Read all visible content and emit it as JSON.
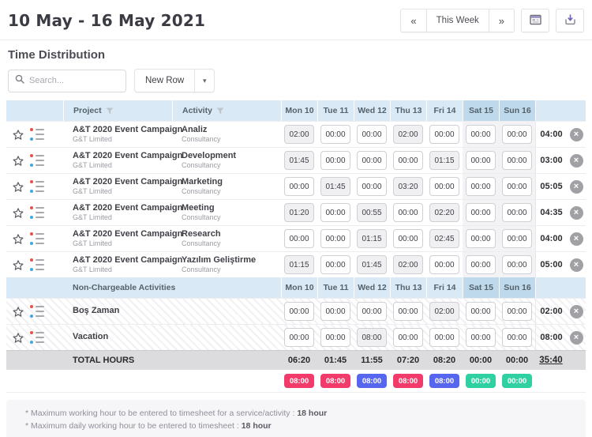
{
  "header": {
    "title": "10 May - 16 May 2021",
    "prev": "«",
    "this_week": "This Week",
    "next": "»"
  },
  "section_title": "Time Distribution",
  "toolbar": {
    "search_placeholder": "Search...",
    "new_row": "New Row",
    "dropdown_chevron": "▾"
  },
  "table": {
    "columns": {
      "project": "Project",
      "activity": "Activity"
    },
    "days": [
      "Mon 10",
      "Tue 11",
      "Wed 12",
      "Thu 13",
      "Fri 14",
      "Sat 15",
      "Sun 16"
    ],
    "rows": [
      {
        "project": "A&T 2020 Event Campaign",
        "company": "G&T Limited",
        "activity": "Analiz",
        "activity_sub": "Consultancy",
        "times": [
          "02:00",
          "00:00",
          "00:00",
          "02:00",
          "00:00",
          "00:00",
          "00:00"
        ],
        "total": "04:00"
      },
      {
        "project": "A&T 2020 Event Campaign",
        "company": "G&T Limited",
        "activity": "Development",
        "activity_sub": "Consultancy",
        "times": [
          "01:45",
          "00:00",
          "00:00",
          "00:00",
          "01:15",
          "00:00",
          "00:00"
        ],
        "total": "03:00"
      },
      {
        "project": "A&T 2020 Event Campaign",
        "company": "G&T Limited",
        "activity": "Marketing",
        "activity_sub": "Consultancy",
        "times": [
          "00:00",
          "01:45",
          "00:00",
          "03:20",
          "00:00",
          "00:00",
          "00:00"
        ],
        "total": "05:05"
      },
      {
        "project": "A&T 2020 Event Campaign",
        "company": "G&T Limited",
        "activity": "Meeting",
        "activity_sub": "Consultancy",
        "times": [
          "01:20",
          "00:00",
          "00:55",
          "00:00",
          "02:20",
          "00:00",
          "00:00"
        ],
        "total": "04:35"
      },
      {
        "project": "A&T 2020 Event Campaign",
        "company": "G&T Limited",
        "activity": "Research",
        "activity_sub": "Consultancy",
        "times": [
          "00:00",
          "00:00",
          "01:15",
          "00:00",
          "02:45",
          "00:00",
          "00:00"
        ],
        "total": "04:00"
      },
      {
        "project": "A&T 2020 Event Campaign",
        "company": "G&T Limited",
        "activity": "Yazılım Geliştirme",
        "activity_sub": "Consultancy",
        "times": [
          "01:15",
          "00:00",
          "01:45",
          "02:00",
          "00:00",
          "00:00",
          "00:00"
        ],
        "total": "05:00"
      }
    ],
    "non_chargeable": {
      "label": "Non-Chargeable Activities",
      "rows": [
        {
          "name": "Boş Zaman",
          "times": [
            "00:00",
            "00:00",
            "00:00",
            "00:00",
            "02:00",
            "00:00",
            "00:00"
          ],
          "total": "02:00"
        },
        {
          "name": "Vacation",
          "times": [
            "00:00",
            "00:00",
            "08:00",
            "00:00",
            "00:00",
            "00:00",
            "00:00"
          ],
          "total": "08:00"
        }
      ]
    },
    "totals": {
      "label": "TOTAL HOURS",
      "values": [
        "06:20",
        "01:45",
        "11:55",
        "07:20",
        "08:20",
        "00:00",
        "00:00"
      ],
      "grand_total": "35:40"
    },
    "daily_badges": [
      {
        "value": "08:00",
        "color": "#f23b6a"
      },
      {
        "value": "08:00",
        "color": "#f23b6a"
      },
      {
        "value": "08:00",
        "color": "#5766ef"
      },
      {
        "value": "08:00",
        "color": "#f23b6a"
      },
      {
        "value": "08:00",
        "color": "#5766ef"
      },
      {
        "value": "00:00",
        "color": "#2fd0a2"
      },
      {
        "value": "00:00",
        "color": "#2fd0a2"
      }
    ]
  },
  "footnotes": [
    {
      "text": "* Maximum working hour to be entered to timesheet for a service/activity : ",
      "bold": "18 hour"
    },
    {
      "text": "* Maximum daily working hour to be entered to timesheet : ",
      "bold": "18 hour"
    }
  ],
  "icons": {
    "search": "magnifier",
    "calendar_button": "timesheet-calendar",
    "download_button": "download-tray-arrow",
    "filter": "funnel",
    "row_icons": "star, colored-list, delete-x"
  },
  "colors": {
    "header_blue": "#d9eaf6",
    "weekend_header_blue": "#bdd9eb",
    "weekend_column": "#f3f3f5",
    "total_row_bg": "#dcdcde",
    "badge_pink": "#f23b6a",
    "badge_blue": "#5766ef",
    "badge_teal": "#2fd0a2"
  }
}
